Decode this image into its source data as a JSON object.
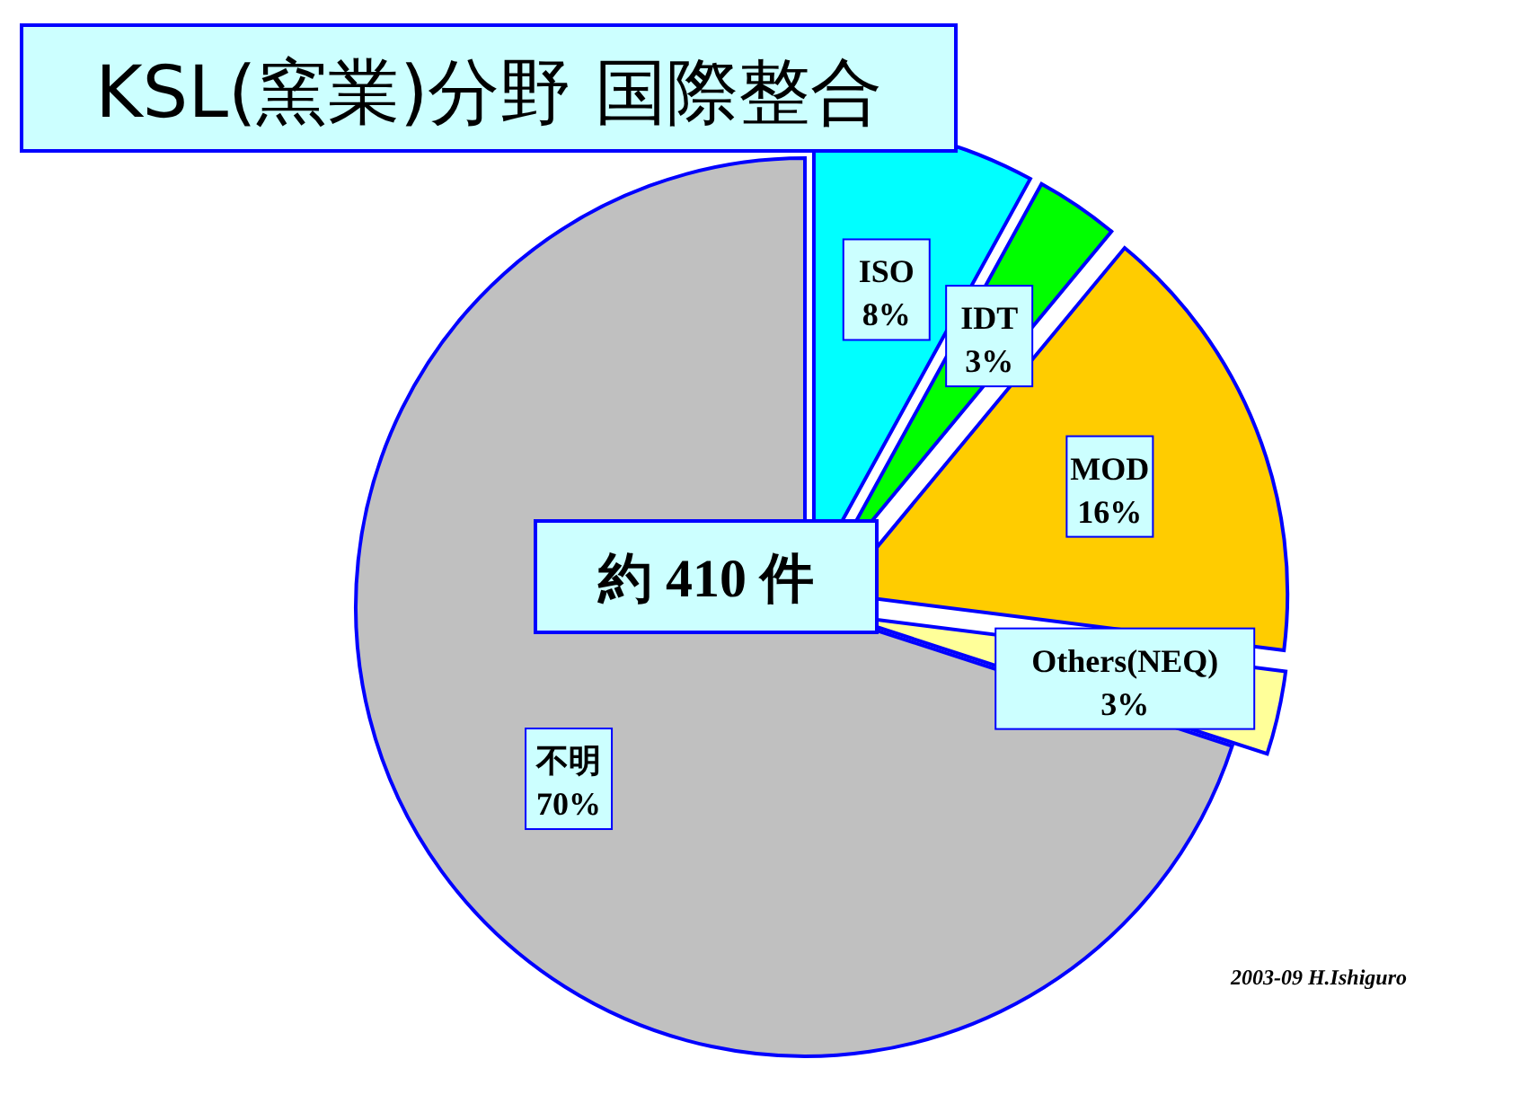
{
  "chart_data": {
    "type": "pie",
    "title": "KSL(窯業)分野 国際整合",
    "categories": [
      "ISO",
      "IDT",
      "MOD",
      "Others(NEQ)",
      "不明"
    ],
    "values": [
      8,
      3,
      16,
      3,
      70
    ],
    "value_labels": [
      "8%",
      "3%",
      "16%",
      "3%",
      "70%"
    ],
    "colors": [
      "#00ffff",
      "#00ff00",
      "#ffcc00",
      "#ffff99",
      "#c0c0c0"
    ],
    "annotations": [
      "約 410 件",
      "2003-09 H.Ishiguro"
    ]
  }
}
